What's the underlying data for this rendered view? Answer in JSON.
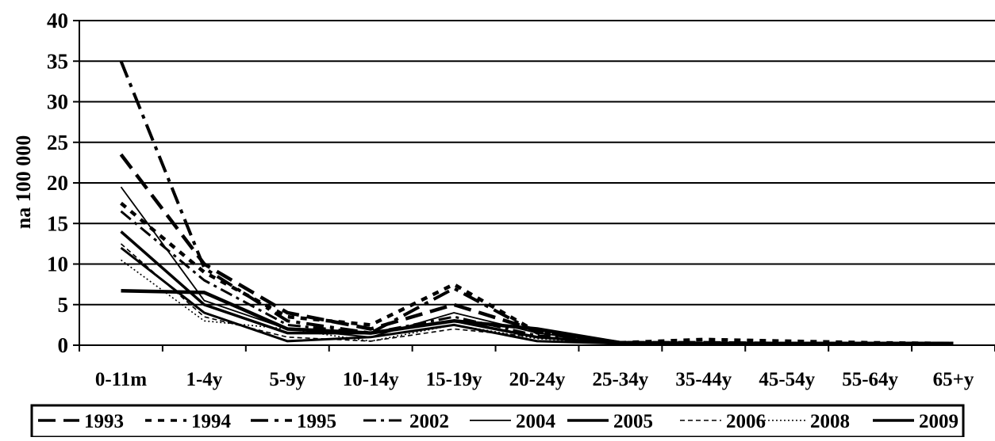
{
  "chart_data": {
    "type": "line",
    "title": "",
    "xlabel": "",
    "ylabel": "na 100 000",
    "ylim": [
      0,
      40
    ],
    "yticks": [
      "0",
      "5",
      "10",
      "15",
      "20",
      "25",
      "30",
      "35",
      "40"
    ],
    "grid": true,
    "legend_position": "bottom",
    "categories": [
      "0-11m",
      "1-4y",
      "5-9y",
      "10-14y",
      "15-19y",
      "20-24y",
      "25-34y",
      "35-44y",
      "45-54y",
      "55-64y",
      "65+y"
    ],
    "series": [
      {
        "name": "1993",
        "values": [
          23.5,
          10.0,
          4.0,
          2.0,
          5.0,
          1.8,
          0.3,
          0.3,
          0.2,
          0.2,
          0.2
        ]
      },
      {
        "name": "1994",
        "values": [
          17.5,
          9.0,
          3.5,
          2.5,
          7.5,
          1.6,
          0.3,
          0.7,
          0.5,
          0.3,
          0.2
        ]
      },
      {
        "name": "1995",
        "values": [
          35.0,
          9.5,
          3.0,
          1.5,
          7.0,
          1.5,
          0.3,
          0.2,
          0.2,
          0.2,
          0.2
        ]
      },
      {
        "name": "2002",
        "values": [
          16.5,
          8.0,
          2.5,
          1.5,
          3.5,
          1.2,
          0.3,
          0.3,
          0.2,
          0.2,
          0.2
        ]
      },
      {
        "name": "2004",
        "values": [
          19.5,
          5.5,
          2.0,
          1.0,
          4.0,
          1.5,
          0.2,
          0.2,
          0.2,
          0.2,
          0.2
        ]
      },
      {
        "name": "2005",
        "values": [
          14.0,
          5.0,
          1.5,
          1.5,
          3.0,
          1.0,
          0.2,
          0.2,
          0.2,
          0.2,
          0.2
        ]
      },
      {
        "name": "2006",
        "values": [
          12.5,
          3.5,
          1.0,
          0.5,
          2.0,
          1.0,
          0.2,
          0.2,
          0.2,
          0.2,
          0.2
        ]
      },
      {
        "name": "2008",
        "values": [
          10.5,
          3.0,
          2.0,
          0.5,
          2.5,
          0.8,
          0.2,
          0.2,
          0.2,
          0.2,
          0.2
        ]
      },
      {
        "name": "2009",
        "values": [
          6.7,
          6.5,
          2.0,
          1.5,
          3.0,
          2.0,
          0.3,
          0.2,
          0.2,
          0.2,
          0.2
        ]
      }
    ],
    "extra_series": [
      {
        "values": [
          12.0,
          4.0,
          0.5,
          1.0,
          2.5,
          0.5,
          0.2,
          0.2,
          0.2,
          0.2,
          0.2
        ]
      }
    ]
  }
}
